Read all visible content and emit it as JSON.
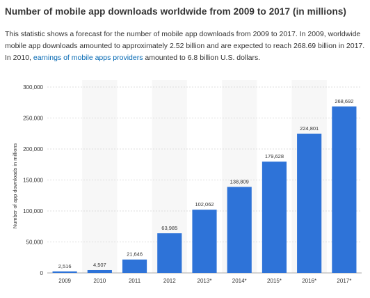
{
  "header": {
    "title": "Number of mobile app downloads worldwide from 2009 to 2017 (in millions)"
  },
  "description": {
    "text_before_link": "This statistic shows a forecast for the number of mobile app downloads from 2009 to 2017. In 2009, worldwide mobile app downloads amounted to approximately 2.52 billion and are expected to reach 268.69 billion in 2017. In 2010, ",
    "link_text": "earnings of mobile apps providers",
    "text_after_link": " amounted to 6.8 billion U.S. dollars."
  },
  "colors": {
    "bar": "#2e73d8",
    "alt_band": "#f7f7f7",
    "grid": "#dddddd",
    "link": "#0066b2",
    "text": "#333333"
  },
  "chart_data": {
    "type": "bar",
    "title": "",
    "xlabel": "",
    "ylabel": "Number of app downloads in millions",
    "categories": [
      "2009",
      "2010",
      "2011",
      "2012",
      "2013*",
      "2014*",
      "2015*",
      "2016*",
      "2017*"
    ],
    "values": [
      2516,
      4507,
      21646,
      63985,
      102062,
      138809,
      179628,
      224801,
      268692
    ],
    "value_labels": [
      "2,516",
      "4,507",
      "21,646",
      "63,985",
      "102,062",
      "138,809",
      "179,628",
      "224,801",
      "268,692"
    ],
    "yticks": [
      0,
      50000,
      100000,
      150000,
      200000,
      250000,
      300000
    ],
    "ytick_labels": [
      "0",
      "50,000",
      "100,000",
      "150,000",
      "200,000",
      "250,000",
      "300,000"
    ],
    "ylim": [
      0,
      300000
    ],
    "grid": true,
    "legend": "none"
  }
}
